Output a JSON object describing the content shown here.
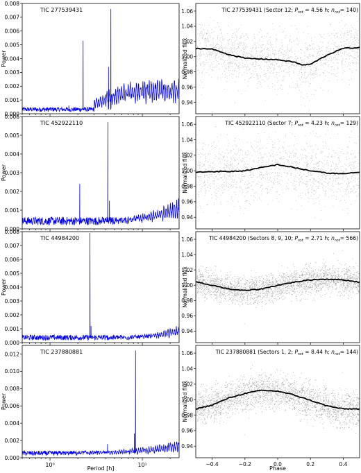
{
  "chart_data": [
    {
      "type": "line",
      "panel": "periodogram",
      "label": "TIC 277539431",
      "ylabel": "Power",
      "xlabel": "",
      "xscale": "log",
      "xlim": [
        0.5,
        25
      ],
      "ylim": [
        0,
        0.008
      ],
      "yticks": [
        "0.000",
        "0.001",
        "0.002",
        "0.003",
        "0.004",
        "0.005",
        "0.006",
        "0.007",
        "0.008"
      ],
      "color": "#0000ee",
      "noise_floor": 0.0003,
      "rise": {
        "start": 3.0,
        "end": 5.5,
        "level": 0.0018,
        "slope_to": 0.0023
      },
      "peaks": [
        {
          "x": 1.6,
          "y": 0.0006
        },
        {
          "x": 2.28,
          "y": 0.0053
        },
        {
          "x": 4.56,
          "y": 0.0076
        },
        {
          "x": 4.3,
          "y": 0.0034
        }
      ]
    },
    {
      "type": "line",
      "panel": "periodogram",
      "label": "TIC 452922110",
      "ylabel": "Power",
      "xlabel": "",
      "xscale": "log",
      "xlim": [
        0.5,
        25
      ],
      "ylim": [
        0,
        0.006
      ],
      "yticks": [
        "0.000",
        "0.001",
        "0.002",
        "0.003",
        "0.004",
        "0.005",
        "0.006"
      ],
      "color": "#0000ee",
      "noise_floor": 0.0004,
      "rise": {
        "start": 3.5,
        "end": 25,
        "level": 0.0006,
        "slope_to": 0.0015
      },
      "peaks": [
        {
          "x": 2.1,
          "y": 0.0024
        },
        {
          "x": 4.23,
          "y": 0.0057
        },
        {
          "x": 4.4,
          "y": 0.0015
        }
      ]
    },
    {
      "type": "line",
      "panel": "periodogram",
      "label": "TIC 44984200",
      "ylabel": "Power",
      "xlabel": "",
      "xscale": "log",
      "xlim": [
        0.5,
        25
      ],
      "ylim": [
        0,
        0.008
      ],
      "yticks": [
        "0.000",
        "0.001",
        "0.002",
        "0.003",
        "0.004",
        "0.005",
        "0.006",
        "0.007",
        "0.008"
      ],
      "color": "#0000ee",
      "noise_floor": 0.00035,
      "rise": {
        "start": 4,
        "end": 25,
        "level": 0.0004,
        "slope_to": 0.0011
      },
      "peaks": [
        {
          "x": 2.71,
          "y": 0.0079
        },
        {
          "x": 2.78,
          "y": 0.0012
        }
      ]
    },
    {
      "type": "line",
      "panel": "periodogram",
      "label": "TIC 237880881",
      "ylabel": "Power",
      "xlabel": "Period [h]",
      "xscale": "log",
      "xlim": [
        0.5,
        25
      ],
      "ylim": [
        0,
        0.013
      ],
      "yticks": [
        "0.000",
        "0.002",
        "0.004",
        "0.006",
        "0.008",
        "0.010",
        "0.012"
      ],
      "xticks": [
        "10⁰",
        "10¹"
      ],
      "color": "#0000ee",
      "noise_floor": 0.0005,
      "rise": {
        "start": 1.2,
        "end": 25,
        "level": 0.0008,
        "slope_to": 0.0018
      },
      "peaks": [
        {
          "x": 8.44,
          "y": 0.0124
        },
        {
          "x": 8.2,
          "y": 0.0028
        },
        {
          "x": 4.2,
          "y": 0.0016
        }
      ]
    },
    {
      "type": "scatter",
      "panel": "lightcurve",
      "title": {
        "tic": "TIC 277539431",
        "pre": " (Sector 12; ",
        "p_sym": "P",
        "p_sub": "rot",
        "p_val": "= 4.56 h; ",
        "n_sym": "n",
        "n_sub": "rot",
        "n_val": "= 140)"
      },
      "ylabel": "Normalized flux",
      "xlabel": "",
      "xlim": [
        -0.5,
        0.5
      ],
      "ylim": [
        0.925,
        1.07
      ],
      "yticks": [
        "0.94",
        "0.96",
        "0.98",
        "1.00",
        "1.02",
        "1.04",
        "1.06"
      ],
      "scatter_color": "#a8a8a8",
      "line_color": "#000000",
      "scatter_sigma": 0.018,
      "point_count": 1600,
      "curve": [
        {
          "phase": -0.5,
          "flux": 1.011
        },
        {
          "phase": -0.4,
          "flux": 1.01
        },
        {
          "phase": -0.3,
          "flux": 1.003
        },
        {
          "phase": -0.2,
          "flux": 0.998
        },
        {
          "phase": -0.1,
          "flux": 0.997
        },
        {
          "phase": 0.0,
          "flux": 0.996
        },
        {
          "phase": 0.1,
          "flux": 0.993
        },
        {
          "phase": 0.15,
          "flux": 0.989
        },
        {
          "phase": 0.2,
          "flux": 0.99
        },
        {
          "phase": 0.3,
          "flux": 1.002
        },
        {
          "phase": 0.4,
          "flux": 1.011
        },
        {
          "phase": 0.5,
          "flux": 1.012
        }
      ]
    },
    {
      "type": "scatter",
      "panel": "lightcurve",
      "title": {
        "tic": "TIC 452922110",
        "pre": " (Sector 7; ",
        "p_sym": "P",
        "p_sub": "rot",
        "p_val": "= 4.23 h; ",
        "n_sym": "n",
        "n_sub": "rot",
        "n_val": "= 129)"
      },
      "ylabel": "Normalized flux",
      "xlabel": "",
      "xlim": [
        -0.5,
        0.5
      ],
      "ylim": [
        0.925,
        1.07
      ],
      "yticks": [
        "0.94",
        "0.96",
        "0.98",
        "1.00",
        "1.02",
        "1.04",
        "1.06"
      ],
      "scatter_color": "#a8a8a8",
      "line_color": "#000000",
      "scatter_sigma": 0.02,
      "point_count": 1500,
      "curve": [
        {
          "phase": -0.5,
          "flux": 0.998
        },
        {
          "phase": -0.4,
          "flux": 0.999
        },
        {
          "phase": -0.3,
          "flux": 0.999
        },
        {
          "phase": -0.2,
          "flux": 1.0
        },
        {
          "phase": -0.1,
          "flux": 1.004
        },
        {
          "phase": 0.0,
          "flux": 1.008
        },
        {
          "phase": 0.1,
          "flux": 1.004
        },
        {
          "phase": 0.2,
          "flux": 1.0
        },
        {
          "phase": 0.3,
          "flux": 0.997
        },
        {
          "phase": 0.4,
          "flux": 0.996
        },
        {
          "phase": 0.5,
          "flux": 0.998
        }
      ]
    },
    {
      "type": "scatter",
      "panel": "lightcurve",
      "title": {
        "tic": "TIC 44984200",
        "pre": " (Sectors 8, 9, 10; ",
        "p_sym": "P",
        "p_sub": "rot",
        "p_val": "= 2.71 h; ",
        "n_sym": "n",
        "n_sub": "rot",
        "n_val": "= 566)"
      },
      "ylabel": "Normalized flux",
      "xlabel": "",
      "xlim": [
        -0.5,
        0.5
      ],
      "ylim": [
        0.925,
        1.07
      ],
      "yticks": [
        "0.94",
        "0.96",
        "0.98",
        "1.00",
        "1.02",
        "1.04",
        "1.06"
      ],
      "scatter_color": "#8a8a8a",
      "line_color": "#000000",
      "scatter_sigma": 0.009,
      "point_count": 2400,
      "curve": [
        {
          "phase": -0.5,
          "flux": 1.004
        },
        {
          "phase": -0.4,
          "flux": 1.0
        },
        {
          "phase": -0.3,
          "flux": 0.995
        },
        {
          "phase": -0.2,
          "flux": 0.993
        },
        {
          "phase": -0.1,
          "flux": 0.995
        },
        {
          "phase": 0.0,
          "flux": 1.0
        },
        {
          "phase": 0.1,
          "flux": 1.004
        },
        {
          "phase": 0.2,
          "flux": 1.007
        },
        {
          "phase": 0.3,
          "flux": 1.008
        },
        {
          "phase": 0.4,
          "flux": 1.007
        },
        {
          "phase": 0.5,
          "flux": 1.004
        }
      ]
    },
    {
      "type": "scatter",
      "panel": "lightcurve",
      "title": {
        "tic": "TIC 237880881",
        "pre": " (Sectors 1, 2; ",
        "p_sym": "P",
        "p_sub": "rot",
        "p_val": "= 8.44 h; ",
        "n_sym": "n",
        "n_sub": "rot",
        "n_val": "= 144)"
      },
      "ylabel": "Normalized flux",
      "xlabel": "Phase",
      "xlim": [
        -0.5,
        0.5
      ],
      "ylim": [
        0.925,
        1.07
      ],
      "yticks": [
        "0.94",
        "0.96",
        "0.98",
        "1.00",
        "1.02",
        "1.04",
        "1.06"
      ],
      "xticks": [
        "−0.4",
        "−0.2",
        "0.0",
        "0.2",
        "0.4"
      ],
      "xtick_values": [
        -0.4,
        -0.2,
        0.0,
        0.2,
        0.4
      ],
      "scatter_color": "#8a8a8a",
      "line_color": "#000000",
      "scatter_sigma": 0.011,
      "point_count": 2400,
      "curve": [
        {
          "phase": -0.5,
          "flux": 0.988
        },
        {
          "phase": -0.4,
          "flux": 0.993
        },
        {
          "phase": -0.3,
          "flux": 1.002
        },
        {
          "phase": -0.2,
          "flux": 1.008
        },
        {
          "phase": -0.1,
          "flux": 1.012
        },
        {
          "phase": 0.0,
          "flux": 1.011
        },
        {
          "phase": 0.1,
          "flux": 1.006
        },
        {
          "phase": 0.2,
          "flux": 0.999
        },
        {
          "phase": 0.3,
          "flux": 0.992
        },
        {
          "phase": 0.4,
          "flux": 0.988
        },
        {
          "phase": 0.5,
          "flux": 0.988
        }
      ]
    }
  ]
}
